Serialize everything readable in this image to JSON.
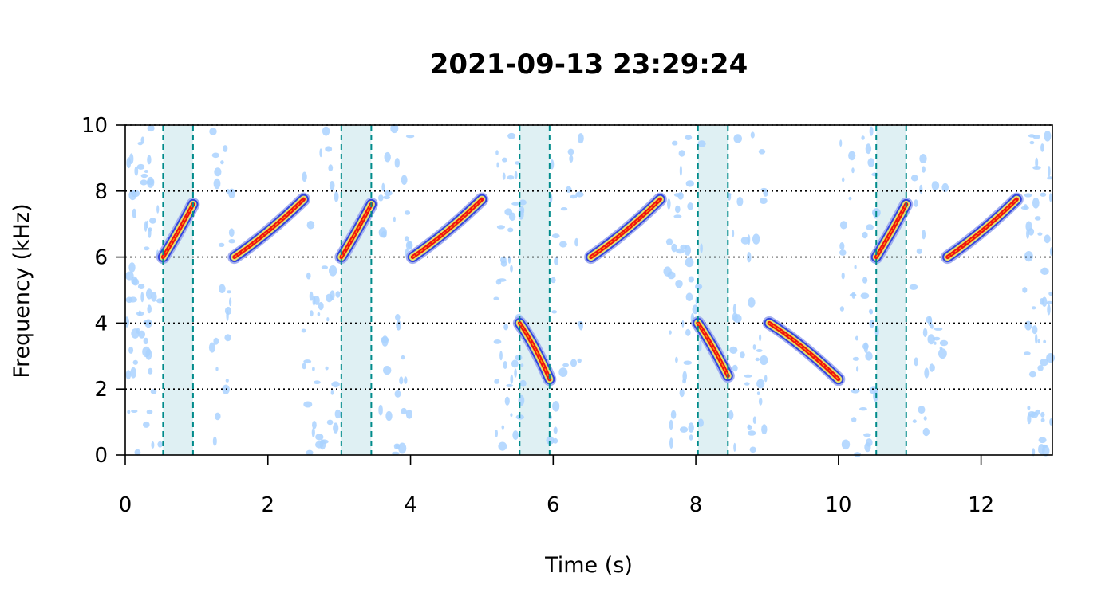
{
  "chart_data": {
    "type": "scatter",
    "title": "2021-09-13 23:29:24",
    "xlabel": "Time (s)",
    "ylabel": "Frequency (kHz)",
    "xlim": [
      0,
      13
    ],
    "ylim": [
      0,
      10
    ],
    "x_ticks": [
      0,
      2,
      4,
      6,
      8,
      10,
      12
    ],
    "y_ticks": [
      0,
      2,
      4,
      6,
      8,
      10
    ],
    "horizontal_gridlines": [
      2,
      4,
      6,
      8,
      10
    ],
    "grid_style": "dotted",
    "colors": {
      "selection_fill": "#dff0f3",
      "selection_border": "#008b8b",
      "noise": "#aad2ff",
      "outer_contour": "#3344dd",
      "middle_contour": "#e6e06b",
      "core": "#ee1111",
      "ridge": "#ff9900"
    },
    "selection_windows": [
      {
        "start": 0.53,
        "end": 0.95
      },
      {
        "start": 3.03,
        "end": 3.45
      },
      {
        "start": 5.53,
        "end": 5.95
      },
      {
        "start": 8.03,
        "end": 8.45
      },
      {
        "start": 10.53,
        "end": 10.95
      }
    ],
    "series": [
      {
        "points": [
          [
            0.53,
            6.0
          ],
          [
            0.73,
            6.7
          ],
          [
            0.95,
            7.6
          ]
        ]
      },
      {
        "points": [
          [
            1.53,
            6.0
          ],
          [
            2.0,
            6.7
          ],
          [
            2.5,
            7.75
          ]
        ]
      },
      {
        "points": [
          [
            3.03,
            6.0
          ],
          [
            3.23,
            6.7
          ],
          [
            3.45,
            7.6
          ]
        ]
      },
      {
        "points": [
          [
            4.03,
            6.0
          ],
          [
            4.5,
            6.7
          ],
          [
            5.0,
            7.75
          ]
        ]
      },
      {
        "points": [
          [
            5.53,
            4.0
          ],
          [
            5.75,
            3.3
          ],
          [
            5.95,
            2.3
          ]
        ]
      },
      {
        "points": [
          [
            6.53,
            6.0
          ],
          [
            7.0,
            6.7
          ],
          [
            7.5,
            7.75
          ]
        ]
      },
      {
        "points": [
          [
            8.03,
            4.0
          ],
          [
            8.25,
            3.3
          ],
          [
            8.45,
            2.4
          ]
        ]
      },
      {
        "points": [
          [
            9.03,
            4.0
          ],
          [
            9.5,
            3.35
          ],
          [
            10.0,
            2.3
          ]
        ]
      },
      {
        "points": [
          [
            10.53,
            6.0
          ],
          [
            10.73,
            6.7
          ],
          [
            10.95,
            7.6
          ]
        ]
      },
      {
        "points": [
          [
            11.53,
            6.0
          ],
          [
            12.0,
            6.7
          ],
          [
            12.5,
            7.75
          ]
        ]
      }
    ]
  }
}
